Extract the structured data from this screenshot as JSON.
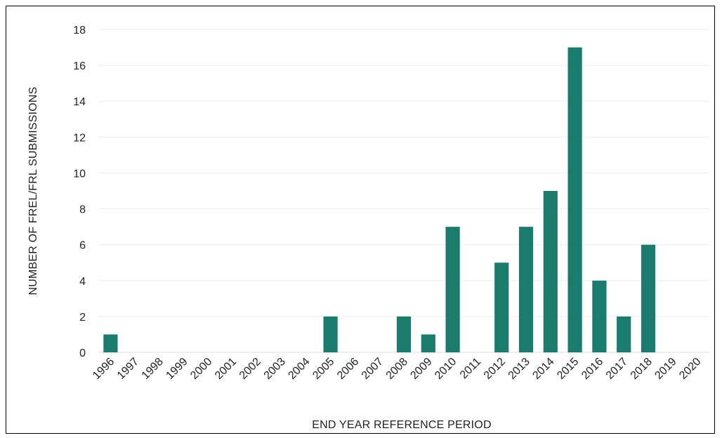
{
  "chart_data": {
    "type": "bar",
    "categories": [
      "1996",
      "1997",
      "1998",
      "1999",
      "2000",
      "2001",
      "2002",
      "2003",
      "2004",
      "2005",
      "2006",
      "2007",
      "2008",
      "2009",
      "2010",
      "2011",
      "2012",
      "2013",
      "2014",
      "2015",
      "2016",
      "2017",
      "2018",
      "2019",
      "2020"
    ],
    "values": [
      1,
      0,
      0,
      0,
      0,
      0,
      0,
      0,
      0,
      2,
      0,
      0,
      2,
      1,
      7,
      0,
      5,
      7,
      9,
      17,
      4,
      2,
      6,
      0,
      0
    ],
    "title": "",
    "xlabel": "END YEAR REFERENCE PERIOD",
    "ylabel": "NUMBER OF FREL/FRL SUBMISSIONS",
    "ylim": [
      0,
      18
    ],
    "yticks": [
      0,
      2,
      4,
      6,
      8,
      10,
      12,
      14,
      16,
      18
    ],
    "grid": true,
    "legend": "none",
    "bar_color": "#1a7c6c",
    "grid_color": "#eeeeee"
  }
}
